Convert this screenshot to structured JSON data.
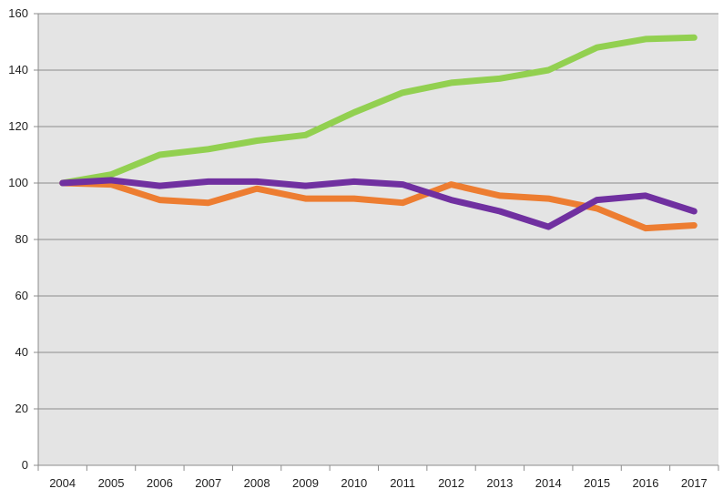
{
  "chart_data": {
    "type": "line",
    "title": "",
    "xlabel": "",
    "ylabel": "",
    "x": [
      "2004",
      "2005",
      "2006",
      "2007",
      "2008",
      "2009",
      "2010",
      "2011",
      "2012",
      "2013",
      "2014",
      "2015",
      "2016",
      "2017"
    ],
    "ylim": [
      0,
      160
    ],
    "yticks": [
      "0",
      "20",
      "40",
      "60",
      "80",
      "100",
      "120",
      "140",
      "160"
    ],
    "grid": true,
    "legend": "none",
    "plot_background": "#e4e4e4",
    "series": [
      {
        "color": "#92d050",
        "values": [
          100,
          103,
          110,
          112,
          115,
          117,
          125,
          132,
          135.5,
          137,
          140,
          148,
          151,
          151.5
        ]
      },
      {
        "color": "#ed7d31",
        "values": [
          100,
          99.5,
          94,
          93,
          98,
          94.5,
          94.5,
          93,
          99.5,
          95.5,
          94.5,
          91,
          84,
          85
        ]
      },
      {
        "color": "#7030a0",
        "values": [
          100,
          101,
          99,
          100.5,
          100.5,
          99,
          100.5,
          99.5,
          94,
          90,
          84.5,
          94,
          95.5,
          90
        ]
      }
    ]
  }
}
